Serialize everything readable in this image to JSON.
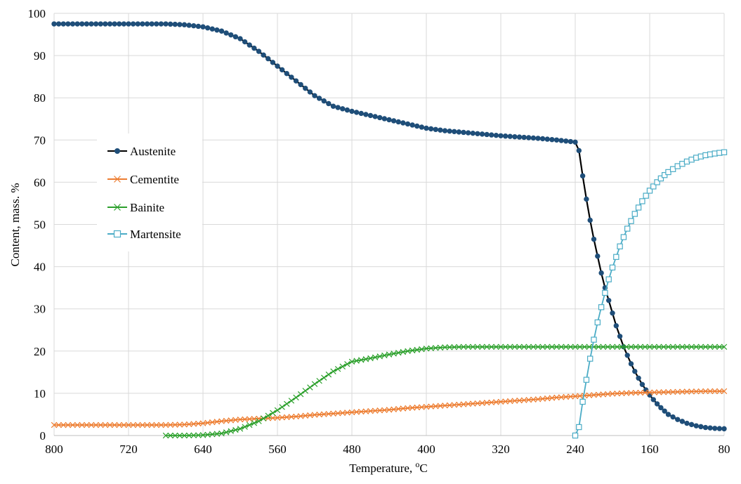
{
  "chart_data": {
    "type": "line",
    "title": "",
    "xlabel": "Temperature, ",
    "xlabel_unit": "oC",
    "ylabel": "Content, mass. %",
    "xlim": [
      800,
      80
    ],
    "ylim": [
      0,
      100
    ],
    "x_reversed": true,
    "x_ticks": [
      800,
      720,
      640,
      560,
      480,
      400,
      320,
      240,
      160,
      80
    ],
    "y_ticks": [
      0,
      10,
      20,
      30,
      40,
      50,
      60,
      70,
      80,
      90,
      100
    ],
    "grid": true,
    "legend_position": "left-middle",
    "series": [
      {
        "name": "Austenite",
        "color": "#000000",
        "marker_color": "#1F4E79",
        "marker": "circle",
        "points": [
          [
            800,
            97.5
          ],
          [
            740,
            97.5
          ],
          [
            680,
            97.5
          ],
          [
            660,
            97.3
          ],
          [
            640,
            96.8
          ],
          [
            620,
            95.8
          ],
          [
            600,
            94.0
          ],
          [
            580,
            91.0
          ],
          [
            560,
            87.5
          ],
          [
            540,
            84.0
          ],
          [
            520,
            80.5
          ],
          [
            500,
            78.0
          ],
          [
            480,
            76.8
          ],
          [
            460,
            75.8
          ],
          [
            440,
            74.8
          ],
          [
            420,
            73.8
          ],
          [
            400,
            72.8
          ],
          [
            380,
            72.2
          ],
          [
            360,
            71.8
          ],
          [
            340,
            71.4
          ],
          [
            320,
            71.0
          ],
          [
            300,
            70.7
          ],
          [
            280,
            70.4
          ],
          [
            260,
            70.0
          ],
          [
            240,
            69.5
          ],
          [
            236,
            67.5
          ],
          [
            232,
            61.5
          ],
          [
            228,
            56.0
          ],
          [
            224,
            51.0
          ],
          [
            220,
            46.5
          ],
          [
            216,
            42.5
          ],
          [
            212,
            38.5
          ],
          [
            208,
            35.0
          ],
          [
            204,
            32.0
          ],
          [
            200,
            29.0
          ],
          [
            196,
            26.0
          ],
          [
            192,
            23.5
          ],
          [
            188,
            21.0
          ],
          [
            184,
            19.0
          ],
          [
            180,
            17.0
          ],
          [
            176,
            15.2
          ],
          [
            172,
            13.6
          ],
          [
            168,
            12.1
          ],
          [
            164,
            10.8
          ],
          [
            160,
            9.6
          ],
          [
            156,
            8.5
          ],
          [
            152,
            7.5
          ],
          [
            148,
            6.6
          ],
          [
            144,
            5.8
          ],
          [
            140,
            5.0
          ],
          [
            130,
            3.8
          ],
          [
            120,
            2.9
          ],
          [
            110,
            2.3
          ],
          [
            100,
            1.9
          ],
          [
            90,
            1.7
          ],
          [
            80,
            1.6
          ]
        ]
      },
      {
        "name": "Cementite",
        "color": "#ED7D31",
        "marker_color": "#ED7D31",
        "marker": "x",
        "points": [
          [
            800,
            2.5
          ],
          [
            760,
            2.5
          ],
          [
            720,
            2.5
          ],
          [
            680,
            2.5
          ],
          [
            660,
            2.6
          ],
          [
            640,
            2.9
          ],
          [
            620,
            3.4
          ],
          [
            600,
            3.8
          ],
          [
            580,
            4.0
          ],
          [
            560,
            4.2
          ],
          [
            540,
            4.5
          ],
          [
            520,
            4.9
          ],
          [
            500,
            5.2
          ],
          [
            480,
            5.5
          ],
          [
            460,
            5.8
          ],
          [
            440,
            6.1
          ],
          [
            420,
            6.5
          ],
          [
            400,
            6.8
          ],
          [
            380,
            7.1
          ],
          [
            360,
            7.4
          ],
          [
            340,
            7.7
          ],
          [
            320,
            8.0
          ],
          [
            300,
            8.3
          ],
          [
            280,
            8.6
          ],
          [
            260,
            9.0
          ],
          [
            240,
            9.3
          ],
          [
            220,
            9.6
          ],
          [
            200,
            9.9
          ],
          [
            180,
            10.1
          ],
          [
            160,
            10.2
          ],
          [
            140,
            10.3
          ],
          [
            120,
            10.4
          ],
          [
            100,
            10.5
          ],
          [
            80,
            10.5
          ]
        ]
      },
      {
        "name": "Bainite",
        "color": "#2CA02C",
        "marker_color": "#2CA02C",
        "marker": "x",
        "points": [
          [
            680,
            0.0
          ],
          [
            660,
            0.0
          ],
          [
            640,
            0.1
          ],
          [
            620,
            0.5
          ],
          [
            600,
            1.6
          ],
          [
            580,
            3.4
          ],
          [
            560,
            6.0
          ],
          [
            540,
            9.0
          ],
          [
            520,
            12.2
          ],
          [
            500,
            15.2
          ],
          [
            480,
            17.5
          ],
          [
            460,
            18.3
          ],
          [
            440,
            19.2
          ],
          [
            420,
            20.0
          ],
          [
            400,
            20.6
          ],
          [
            380,
            20.9
          ],
          [
            360,
            21.0
          ],
          [
            320,
            21.0
          ],
          [
            280,
            21.0
          ],
          [
            240,
            21.0
          ],
          [
            200,
            21.0
          ],
          [
            160,
            21.0
          ],
          [
            120,
            21.0
          ],
          [
            80,
            21.0
          ]
        ]
      },
      {
        "name": "Martensite",
        "color": "#4BACC6",
        "marker_color": "#4BACC6",
        "marker": "square",
        "points": [
          [
            240,
            0.0
          ],
          [
            236,
            2.0
          ],
          [
            232,
            8.0
          ],
          [
            228,
            13.2
          ],
          [
            224,
            18.2
          ],
          [
            220,
            22.7
          ],
          [
            216,
            26.8
          ],
          [
            212,
            30.4
          ],
          [
            208,
            33.8
          ],
          [
            204,
            37.0
          ],
          [
            200,
            39.8
          ],
          [
            196,
            42.3
          ],
          [
            192,
            44.8
          ],
          [
            188,
            47.0
          ],
          [
            184,
            49.0
          ],
          [
            180,
            50.8
          ],
          [
            176,
            52.5
          ],
          [
            172,
            54.0
          ],
          [
            168,
            55.5
          ],
          [
            164,
            56.8
          ],
          [
            160,
            58.0
          ],
          [
            156,
            59.0
          ],
          [
            152,
            60.0
          ],
          [
            148,
            60.9
          ],
          [
            144,
            61.7
          ],
          [
            140,
            62.4
          ],
          [
            130,
            63.8
          ],
          [
            120,
            64.9
          ],
          [
            110,
            65.8
          ],
          [
            100,
            66.4
          ],
          [
            90,
            66.8
          ],
          [
            80,
            67.1
          ]
        ]
      }
    ]
  }
}
